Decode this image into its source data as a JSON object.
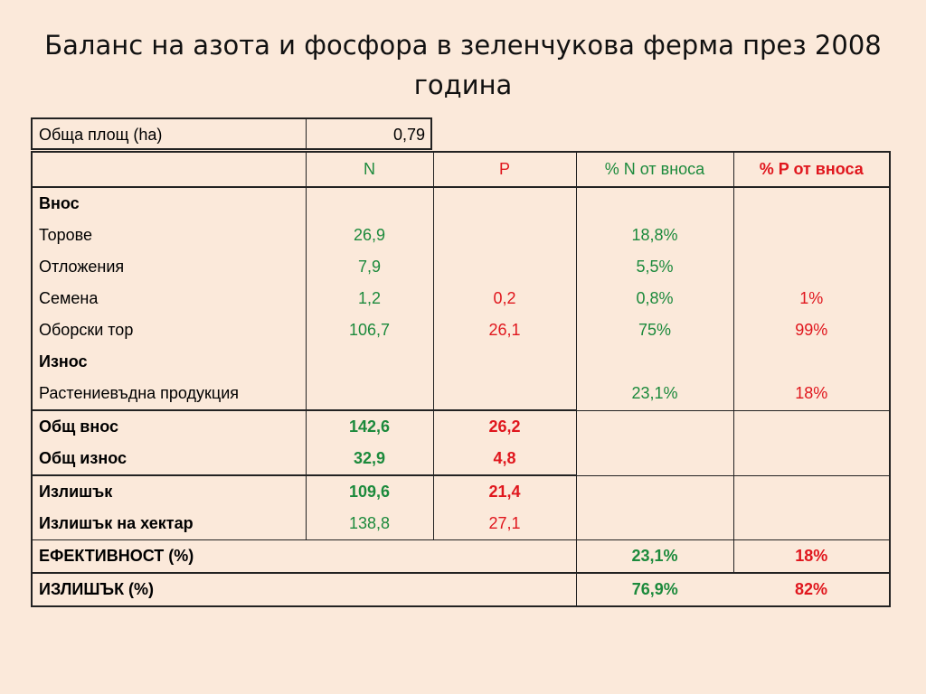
{
  "title": "Баланс на азота и фосфора в зеленчукова ферма през 2008 година",
  "area": {
    "label": "Обща площ (ha)",
    "value": "0,79"
  },
  "header": {
    "col1": "",
    "n": "N",
    "p": "P",
    "n_pct": "% N от вноса",
    "p_pct": "% P от вноса"
  },
  "colors": {
    "n": "#1c8a3c",
    "p": "#e0161d",
    "background": "#fbe9da"
  },
  "rows": {
    "vnos": {
      "label": "Внос"
    },
    "torove": {
      "label": "Торове",
      "n": "26,9",
      "p": "",
      "n_pct": "18,8%",
      "p_pct": ""
    },
    "otlozhenia": {
      "label": "Отложения",
      "n": "7,9",
      "p": "",
      "n_pct": "5,5%",
      "p_pct": ""
    },
    "semena": {
      "label": "Семена",
      "n": "1,2",
      "p": "0,2",
      "n_pct": "0,8%",
      "p_pct": "1%"
    },
    "oborski": {
      "label": "Оборски тор",
      "n": "106,7",
      "p": "26,1",
      "n_pct": "75%",
      "p_pct": "99%"
    },
    "iznos": {
      "label": "Износ"
    },
    "rastenievadna": {
      "label": "Растениевъдна продукция",
      "n": "",
      "p": "",
      "n_pct": "23,1%",
      "p_pct": "18%"
    },
    "obsht_vnos": {
      "label": "Общ внос",
      "n": "142,6",
      "p": "26,2"
    },
    "obsht_iznos": {
      "label": "Общ износ",
      "n": "32,9",
      "p": "4,8"
    },
    "izlishak": {
      "label": "Излишък",
      "n": "109,6",
      "p": "21,4"
    },
    "izlishak_ha": {
      "label": "Излишък на хектар",
      "n": "138,8",
      "p": "27,1"
    },
    "efektivnost": {
      "label": "ЕФЕКТИВНОСТ (%)",
      "n_pct": "23,1%",
      "p_pct": "18%"
    },
    "izlishak_pct": {
      "label": "ИЗЛИШЪК (%)",
      "n_pct": "76,9%",
      "p_pct": "82%"
    }
  }
}
